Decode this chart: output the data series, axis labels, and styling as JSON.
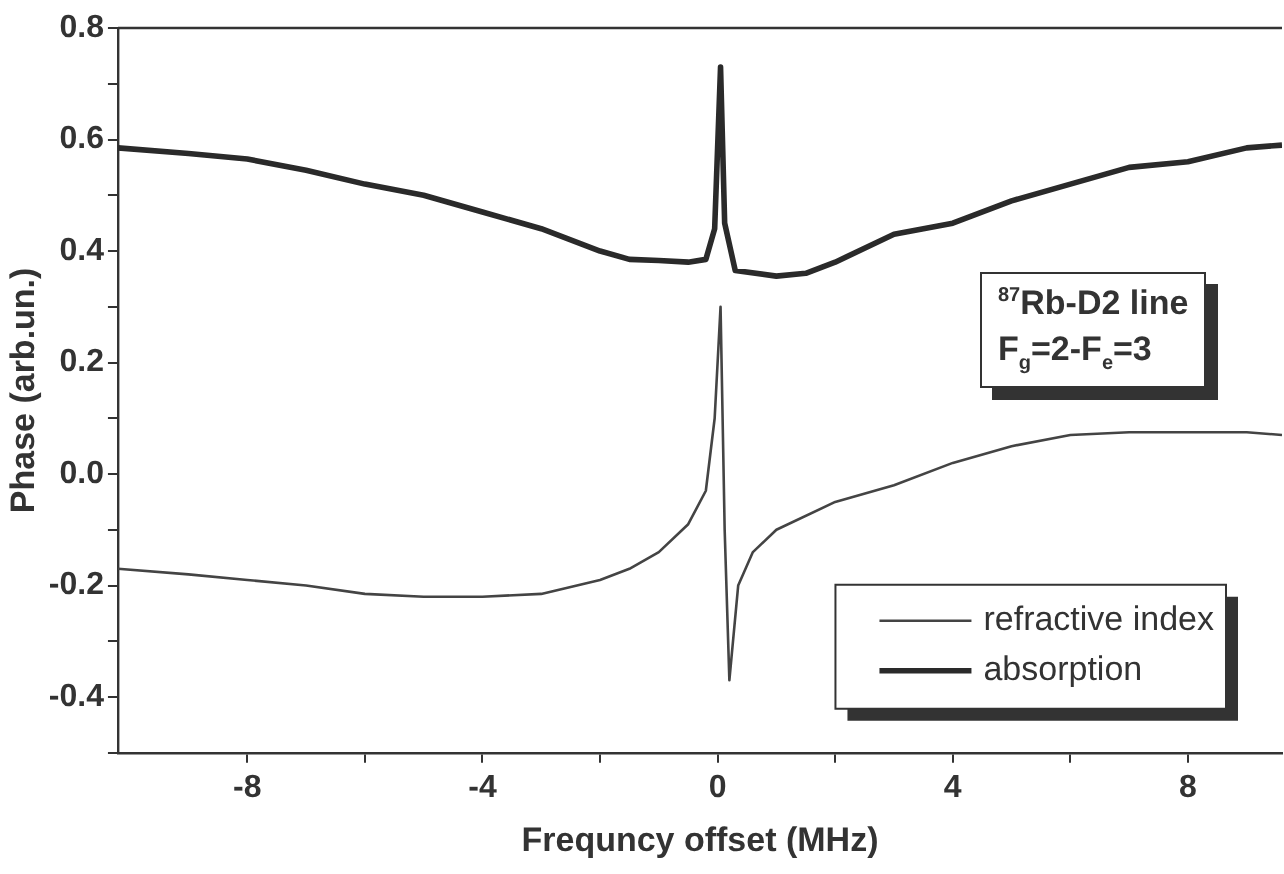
{
  "chart_data": {
    "type": "line",
    "xlabel": "Frequncy offset (MHz)",
    "ylabel": "Phase (arb.un.)",
    "annotations": [
      "$^{87}$Rb-D2 line",
      "F$_{g}$=2-F$_{e}$=3"
    ],
    "xlim": [
      -10.2,
      9.6
    ],
    "xticks": [
      -8,
      {
        "value": -6,
        "label": null
      },
      -4,
      {
        "value": -2,
        "label": null
      },
      0,
      {
        "value": 2,
        "label": null
      },
      4,
      {
        "value": 6,
        "label": null
      },
      8
    ],
    "ylim": [
      -0.5,
      0.8
    ],
    "yticks": [
      {
        "value": -0.5,
        "label": null
      },
      -0.4,
      {
        "value": -0.3,
        "label": null
      },
      -0.2,
      {
        "value": -0.1,
        "label": null
      },
      {
        "value": 0,
        "label": "0.0"
      },
      {
        "value": 0.1,
        "label": null
      },
      0.2,
      {
        "value": 0.3,
        "label": null
      },
      0.4,
      {
        "value": 0.5,
        "label": null
      },
      0.6,
      {
        "value": 0.7,
        "label": null
      },
      0.8
    ],
    "grid": false,
    "legend": "bottom right",
    "marker": "none",
    "line_style": "solid",
    "series": [
      {
        "name": "refractive index",
        "color": "#444444",
        "x": [
          -10.2,
          -9,
          -8,
          -7,
          -6,
          -5,
          -4,
          -3,
          -2,
          -1.5,
          -1,
          -0.5,
          -0.2,
          -0.05,
          0.05,
          0.12,
          0.2,
          0.35,
          0.6,
          1,
          2,
          3,
          4,
          5,
          6,
          7,
          8,
          9,
          9.6
        ],
        "values": [
          -0.17,
          -0.18,
          -0.19,
          -0.2,
          -0.215,
          -0.22,
          -0.22,
          -0.215,
          -0.19,
          -0.17,
          -0.14,
          -0.09,
          -0.03,
          0.1,
          0.3,
          -0.1,
          -0.37,
          -0.2,
          -0.14,
          -0.1,
          -0.05,
          -0.02,
          0.02,
          0.05,
          0.07,
          0.075,
          0.075,
          0.075,
          0.07
        ]
      },
      {
        "name": "absorption",
        "color": "#2a2a2a",
        "x": [
          -10.2,
          -9,
          -8,
          -7,
          -6,
          -5,
          -4,
          -3,
          -2,
          -1.5,
          -1,
          -0.5,
          -0.2,
          -0.05,
          0.05,
          0.12,
          0.3,
          1,
          1.5,
          2,
          3,
          4,
          5,
          6,
          7,
          8,
          9,
          9.6
        ],
        "values": [
          0.585,
          0.575,
          0.565,
          0.545,
          0.52,
          0.5,
          0.47,
          0.44,
          0.4,
          0.385,
          0.383,
          0.38,
          0.385,
          0.44,
          0.73,
          0.45,
          0.365,
          0.355,
          0.36,
          0.38,
          0.43,
          0.45,
          0.49,
          0.52,
          0.55,
          0.56,
          0.585,
          0.59
        ]
      }
    ]
  }
}
